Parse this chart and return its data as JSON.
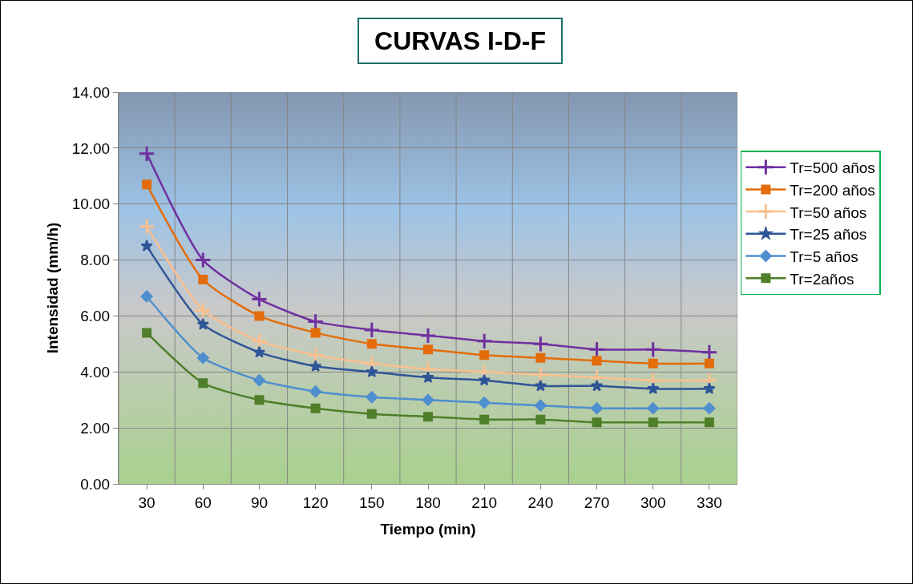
{
  "chart_data": {
    "type": "line",
    "title": "CURVAS I-D-F",
    "xlabel": "Tiempo (min)",
    "ylabel": "Intensidad (mm/h)",
    "categories": [
      "30",
      "60",
      "90",
      "120",
      "150",
      "180",
      "210",
      "240",
      "270",
      "300",
      "330"
    ],
    "ylim": [
      0,
      14
    ],
    "yticks": [
      {
        "value": 0,
        "label": "0.00"
      },
      {
        "value": 2,
        "label": "2.00"
      },
      {
        "value": 4,
        "label": "4.00"
      },
      {
        "value": 6,
        "label": "6.00"
      },
      {
        "value": 8,
        "label": "8.00"
      },
      {
        "value": 10,
        "label": "10.00"
      },
      {
        "value": 12,
        "label": "12.00"
      },
      {
        "value": 14,
        "label": "14.00"
      }
    ],
    "grid": true,
    "legend": "right",
    "line_style": "solid",
    "series": [
      {
        "name": "Tr=500 años",
        "color": "#7030a0",
        "marker": "cross",
        "values": [
          11.8,
          8.0,
          6.6,
          5.8,
          5.5,
          5.3,
          5.1,
          5.0,
          4.8,
          4.8,
          4.7
        ]
      },
      {
        "name": "Tr=200 años",
        "color": "#e46c0a",
        "marker": "square",
        "values": [
          10.7,
          7.3,
          6.0,
          5.4,
          5.0,
          4.8,
          4.6,
          4.5,
          4.4,
          4.3,
          4.3
        ]
      },
      {
        "name": "Tr=50 años",
        "color": "#fac090",
        "marker": "cross",
        "values": [
          9.2,
          6.2,
          5.1,
          4.6,
          4.3,
          4.1,
          4.0,
          3.9,
          3.8,
          3.7,
          3.7
        ]
      },
      {
        "name": "Tr=25 años",
        "color": "#2f5597",
        "marker": "star",
        "values": [
          8.5,
          5.7,
          4.7,
          4.2,
          4.0,
          3.8,
          3.7,
          3.5,
          3.5,
          3.4,
          3.4
        ]
      },
      {
        "name": "Tr=5 años",
        "color": "#4f8fcf",
        "marker": "diamond",
        "values": [
          6.7,
          4.5,
          3.7,
          3.3,
          3.1,
          3.0,
          2.9,
          2.8,
          2.7,
          2.7,
          2.7
        ]
      },
      {
        "name": "Tr=2años",
        "color": "#4f7f2a",
        "marker": "square",
        "values": [
          5.4,
          3.6,
          3.0,
          2.7,
          2.5,
          2.4,
          2.3,
          2.3,
          2.2,
          2.2,
          2.2
        ]
      }
    ]
  }
}
